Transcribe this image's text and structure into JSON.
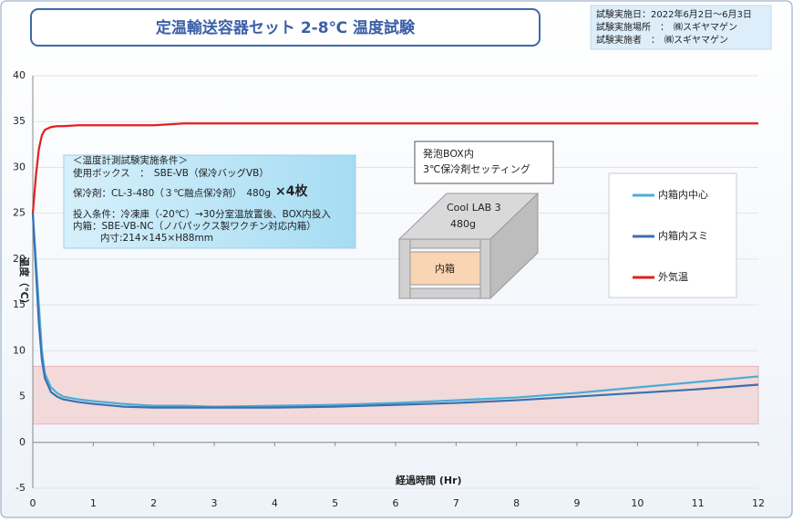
{
  "chart_data": {
    "type": "line",
    "title": "定温輸送容器セット  2-8℃ 温度試験",
    "info": [
      "試験実施日：2022年6月2日～6月3日",
      "試験実施場所　：　㈱スギヤマゲン",
      "試験実施者　：　㈱スギヤマゲン"
    ],
    "conditions": [
      "＜温度計測試験実施条件＞",
      "使用ボックス　：　SBE-VB（保冷バッグVB）",
      "保冷剤：CL-3-480（３℃融点保冷剤）　480g",
      "×4枚",
      "投入条件：冷凍庫（-20℃）→30分室温放置後、BOX内投入",
      "内箱：SBE-VB-NC（ノバパックス製ワクチン対応内箱）",
      "内寸:214×145×H88mm"
    ],
    "diagram": {
      "caption": [
        "発泡BOX内",
        "3℃保冷剤セッティング"
      ],
      "coolant": [
        "Cool LAB 3",
        "480g"
      ],
      "inner": "内箱"
    },
    "x_label": "経過時間  (Hr)",
    "y_label": "温度（℃）",
    "x": [
      0,
      0.05,
      0.1,
      0.15,
      0.2,
      0.3,
      0.4,
      0.5,
      0.75,
      1,
      1.5,
      2,
      2.5,
      3,
      4,
      5,
      6,
      7,
      8,
      9,
      10,
      11,
      12
    ],
    "series": [
      {
        "name": "内箱内中心",
        "color": "#4bacd8",
        "values": [
          25,
          20,
          15,
          10,
          7.5,
          6,
          5.4,
          5,
          4.7,
          4.5,
          4.2,
          4,
          4,
          3.9,
          4,
          4.1,
          4.3,
          4.6,
          4.9,
          5.4,
          6,
          6.6,
          7.2
        ]
      },
      {
        "name": "内箱内スミ",
        "color": "#3a70b0",
        "values": [
          25,
          19,
          13,
          9,
          7,
          5.5,
          5,
          4.7,
          4.4,
          4.2,
          3.9,
          3.8,
          3.8,
          3.8,
          3.8,
          3.9,
          4.1,
          4.3,
          4.6,
          5,
          5.4,
          5.8,
          6.3
        ]
      },
      {
        "name": "外気温",
        "color": "#e0201e",
        "values": [
          25,
          29,
          32,
          33.5,
          34.1,
          34.4,
          34.5,
          34.5,
          34.6,
          34.6,
          34.6,
          34.6,
          34.8,
          34.8,
          34.8,
          34.8,
          34.8,
          34.8,
          34.8,
          34.8,
          34.8,
          34.8,
          34.8
        ]
      }
    ],
    "band": [
      2,
      8.3
    ],
    "band_color": "#f3d9d9",
    "xlim": [
      0,
      12
    ],
    "xticks": [
      0,
      1,
      2,
      3,
      4,
      5,
      6,
      7,
      8,
      9,
      10,
      11,
      12
    ],
    "ylim": [
      -5,
      40
    ],
    "yticks": [
      -5,
      0,
      5,
      10,
      15,
      20,
      25,
      30,
      35,
      40
    ],
    "grid": true
  }
}
